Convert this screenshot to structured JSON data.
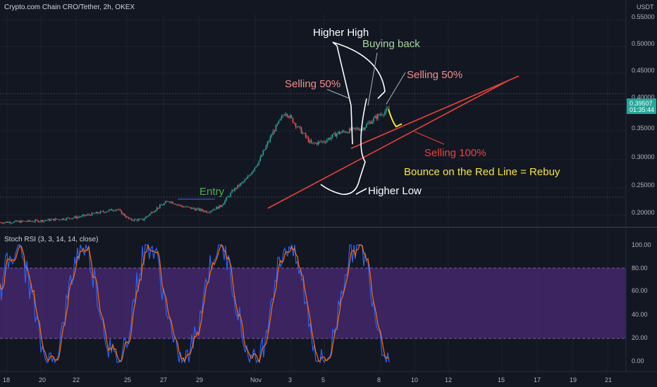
{
  "header": {
    "symbol_title": "Crypto.com Chain CRO/Tether, 2h, OKEX",
    "currency": "USDT"
  },
  "price_axis": {
    "ticks": [
      "0.55000",
      "0.50000",
      "0.45000",
      "0.40000",
      "0.35000",
      "0.30000",
      "0.25000",
      "0.20000"
    ],
    "current_price": "0.39507",
    "countdown": "01:35:44"
  },
  "annotations": {
    "higher_high": "Higher High",
    "buying_back": "Buying back",
    "selling_50_left": "Selling 50%",
    "selling_50_right": "Selling 50%",
    "selling_100": "Selling 100%",
    "bounce": "Bounce on the Red Line = Rebuy",
    "entry": "Entry",
    "higher_low": "Higher Low"
  },
  "indicator": {
    "title": "Stoch RSI (3, 3, 14, 14, close)",
    "ticks": [
      "100.00",
      "80.00",
      "60.00",
      "40.00",
      "20.00",
      "0.00"
    ]
  },
  "time_axis": {
    "ticks": [
      "18",
      "20",
      "22",
      "25",
      "27",
      "29",
      "Nov",
      "3",
      "5",
      "8",
      "10",
      "12",
      "15",
      "17",
      "19",
      "21"
    ]
  },
  "colors": {
    "background": "#131722",
    "up_candle": "#26a69a",
    "down_candle": "#ef5350",
    "trendline": "#e8433c",
    "stoch_k": "#2962ff",
    "stoch_d": "#ff6d00",
    "stoch_band": "#5b2b8c",
    "price_label": "#26a69a"
  },
  "chart_data": {
    "type": "candlestick",
    "ylim": [
      0.18,
      0.57
    ],
    "x": [
      "18",
      "20",
      "22",
      "25",
      "27",
      "29",
      "Nov",
      "3",
      "5",
      "8",
      "10",
      "12",
      "15",
      "17",
      "19",
      "21"
    ],
    "close_path": [
      0.185,
      0.186,
      0.187,
      0.188,
      0.19,
      0.192,
      0.195,
      0.2,
      0.205,
      0.21,
      0.19,
      0.19,
      0.21,
      0.225,
      0.215,
      0.21,
      0.205,
      0.215,
      0.245,
      0.265,
      0.3,
      0.35,
      0.39,
      0.36,
      0.33,
      0.335,
      0.35,
      0.355,
      0.36,
      0.38,
      0.395
    ],
    "stoch_ylim": [
      0,
      100
    ]
  }
}
